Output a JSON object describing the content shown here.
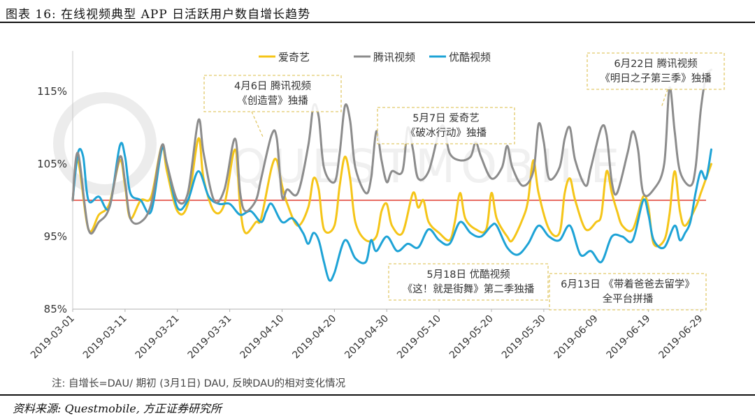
{
  "header": {
    "title": "图表 16:  在线视频典型 APP 日活跃用户数自增长趋势"
  },
  "footer": {
    "source": "资料来源: Questmobile, 方正证券研究所"
  },
  "chart_data": {
    "type": "line",
    "xlabel": "",
    "ylabel": "",
    "ylim": [
      85,
      120
    ],
    "yticks": [
      "85%",
      "95%",
      "105%",
      "115%"
    ],
    "ytick_values": [
      85,
      95,
      105,
      115
    ],
    "grid": false,
    "legend_position": "top-center",
    "baseline": {
      "value": 100,
      "color": "#e03c31"
    },
    "xtick_labels": [
      "2019-03-01",
      "2019-03-11",
      "2019-03-21",
      "2019-03-31",
      "2019-04-10",
      "2019-04-20",
      "2019-04-30",
      "2019-05-10",
      "2019-05-20",
      "2019-05-30",
      "2019-06-09",
      "2019-06-19",
      "2019-06-29"
    ],
    "x_start": "2019-03-01",
    "x_end": "2019-06-30",
    "watermark": "QUESTMOBILE",
    "series": [
      {
        "name": "爱奇艺",
        "color": "#f5c518",
        "points": [
          [
            "2019-03-01",
            100
          ],
          [
            "2019-03-02",
            105.5
          ],
          [
            "2019-03-04",
            96
          ],
          [
            "2019-03-06",
            98
          ],
          [
            "2019-03-08",
            99.5
          ],
          [
            "2019-03-10",
            105.5
          ],
          [
            "2019-03-11",
            102
          ],
          [
            "2019-03-12",
            97.5
          ],
          [
            "2019-03-14",
            100
          ],
          [
            "2019-03-16",
            100.5
          ],
          [
            "2019-03-18",
            107.5
          ],
          [
            "2019-03-19",
            104
          ],
          [
            "2019-03-21",
            98.5
          ],
          [
            "2019-03-23",
            99.5
          ],
          [
            "2019-03-25",
            108.5
          ],
          [
            "2019-03-26",
            103
          ],
          [
            "2019-03-28",
            98.5
          ],
          [
            "2019-03-30",
            99.5
          ],
          [
            "2019-04-01",
            107
          ],
          [
            "2019-04-02",
            99
          ],
          [
            "2019-04-03",
            95.5
          ],
          [
            "2019-04-05",
            97
          ],
          [
            "2019-04-06",
            97.5
          ],
          [
            "2019-04-08",
            104.5
          ],
          [
            "2019-04-09",
            105.5
          ],
          [
            "2019-04-10",
            102
          ],
          [
            "2019-04-11",
            99.5
          ],
          [
            "2019-04-13",
            96.5
          ],
          [
            "2019-04-15",
            99
          ],
          [
            "2019-04-16",
            103
          ],
          [
            "2019-04-17",
            101.5
          ],
          [
            "2019-04-18",
            96
          ],
          [
            "2019-04-20",
            96.5
          ],
          [
            "2019-04-21",
            102
          ],
          [
            "2019-04-22",
            106
          ],
          [
            "2019-04-23",
            103
          ],
          [
            "2019-04-24",
            97
          ],
          [
            "2019-04-26",
            94.5
          ],
          [
            "2019-04-28",
            95
          ],
          [
            "2019-04-29",
            98.5
          ],
          [
            "2019-04-30",
            99.5
          ],
          [
            "2019-05-01",
            96.5
          ],
          [
            "2019-05-03",
            95.5
          ],
          [
            "2019-05-05",
            101
          ],
          [
            "2019-05-06",
            99
          ],
          [
            "2019-05-07",
            100
          ],
          [
            "2019-05-08",
            97
          ],
          [
            "2019-05-10",
            95.5
          ],
          [
            "2019-05-12",
            94.5
          ],
          [
            "2019-05-13",
            97
          ],
          [
            "2019-05-14",
            101
          ],
          [
            "2019-05-15",
            97.5
          ],
          [
            "2019-05-17",
            96
          ],
          [
            "2019-05-19",
            96
          ],
          [
            "2019-05-20",
            101
          ],
          [
            "2019-05-21",
            97.5
          ],
          [
            "2019-05-23",
            95
          ],
          [
            "2019-05-24",
            94.5
          ],
          [
            "2019-05-26",
            97.5
          ],
          [
            "2019-05-27",
            100
          ],
          [
            "2019-05-28",
            105.5
          ],
          [
            "2019-05-29",
            101
          ],
          [
            "2019-05-31",
            96
          ],
          [
            "2019-06-02",
            95.5
          ],
          [
            "2019-06-03",
            101
          ],
          [
            "2019-06-04",
            103
          ],
          [
            "2019-06-05",
            100
          ],
          [
            "2019-06-07",
            96
          ],
          [
            "2019-06-09",
            97
          ],
          [
            "2019-06-10",
            98
          ],
          [
            "2019-06-11",
            104
          ],
          [
            "2019-06-12",
            101
          ],
          [
            "2019-06-13",
            98.5
          ],
          [
            "2019-06-14",
            96.5
          ],
          [
            "2019-06-16",
            96
          ],
          [
            "2019-06-18",
            100.5
          ],
          [
            "2019-06-19",
            99
          ],
          [
            "2019-06-20",
            94
          ],
          [
            "2019-06-22",
            94.5
          ],
          [
            "2019-06-23",
            98
          ],
          [
            "2019-06-24",
            104
          ],
          [
            "2019-06-25",
            98.5
          ],
          [
            "2019-06-26",
            96.5
          ],
          [
            "2019-06-28",
            99
          ],
          [
            "2019-06-29",
            101
          ],
          [
            "2019-06-30",
            103
          ],
          [
            "2019-07-01",
            105
          ]
        ]
      },
      {
        "name": "腾讯视频",
        "color": "#8c8c8c",
        "points": [
          [
            "2019-03-01",
            100
          ],
          [
            "2019-03-02",
            106.5
          ],
          [
            "2019-03-04",
            96
          ],
          [
            "2019-03-06",
            97
          ],
          [
            "2019-03-08",
            99
          ],
          [
            "2019-03-10",
            106
          ],
          [
            "2019-03-11",
            102.5
          ],
          [
            "2019-03-12",
            97.5
          ],
          [
            "2019-03-14",
            97
          ],
          [
            "2019-03-16",
            99.5
          ],
          [
            "2019-03-18",
            107.5
          ],
          [
            "2019-03-19",
            105
          ],
          [
            "2019-03-21",
            100
          ],
          [
            "2019-03-23",
            101
          ],
          [
            "2019-03-25",
            111
          ],
          [
            "2019-03-26",
            106.5
          ],
          [
            "2019-03-28",
            100
          ],
          [
            "2019-03-30",
            101.5
          ],
          [
            "2019-04-01",
            108.5
          ],
          [
            "2019-04-02",
            101
          ],
          [
            "2019-04-03",
            98.5
          ],
          [
            "2019-04-05",
            100
          ],
          [
            "2019-04-06",
            103
          ],
          [
            "2019-04-08",
            109
          ],
          [
            "2019-04-09",
            108.5
          ],
          [
            "2019-04-10",
            100.5
          ],
          [
            "2019-04-11",
            101.5
          ],
          [
            "2019-04-13",
            101
          ],
          [
            "2019-04-15",
            107.5
          ],
          [
            "2019-04-16",
            113
          ],
          [
            "2019-04-17",
            111.5
          ],
          [
            "2019-04-18",
            104.5
          ],
          [
            "2019-04-20",
            102.5
          ],
          [
            "2019-04-21",
            106.5
          ],
          [
            "2019-04-22",
            113
          ],
          [
            "2019-04-23",
            111
          ],
          [
            "2019-04-24",
            104.5
          ],
          [
            "2019-04-26",
            101
          ],
          [
            "2019-04-27",
            103
          ],
          [
            "2019-04-28",
            109.5
          ],
          [
            "2019-04-29",
            105.5
          ],
          [
            "2019-04-30",
            102.5
          ],
          [
            "2019-05-01",
            104
          ],
          [
            "2019-05-03",
            104
          ],
          [
            "2019-05-04",
            110
          ],
          [
            "2019-05-05",
            107
          ],
          [
            "2019-05-06",
            103
          ],
          [
            "2019-05-08",
            104
          ],
          [
            "2019-05-10",
            109.5
          ],
          [
            "2019-05-11",
            110
          ],
          [
            "2019-05-12",
            106.5
          ],
          [
            "2019-05-14",
            105.5
          ],
          [
            "2019-05-16",
            106
          ],
          [
            "2019-05-17",
            108
          ],
          [
            "2019-05-18",
            106
          ],
          [
            "2019-05-20",
            103
          ],
          [
            "2019-05-22",
            104.5
          ],
          [
            "2019-05-23",
            107.5
          ],
          [
            "2019-05-24",
            104.5
          ],
          [
            "2019-05-26",
            102
          ],
          [
            "2019-05-28",
            104
          ],
          [
            "2019-05-29",
            110.5
          ],
          [
            "2019-05-30",
            108
          ],
          [
            "2019-05-31",
            103
          ],
          [
            "2019-06-02",
            104.5
          ],
          [
            "2019-06-03",
            108.5
          ],
          [
            "2019-06-04",
            110
          ],
          [
            "2019-06-05",
            105.5
          ],
          [
            "2019-06-07",
            102
          ],
          [
            "2019-06-08",
            104.5
          ],
          [
            "2019-06-10",
            110
          ],
          [
            "2019-06-11",
            109
          ],
          [
            "2019-06-12",
            102.5
          ],
          [
            "2019-06-13",
            101
          ],
          [
            "2019-06-15",
            106.5
          ],
          [
            "2019-06-16",
            109.5
          ],
          [
            "2019-06-17",
            107
          ],
          [
            "2019-06-18",
            101
          ],
          [
            "2019-06-20",
            101.5
          ],
          [
            "2019-06-22",
            105
          ],
          [
            "2019-06-23",
            115.5
          ],
          [
            "2019-06-24",
            109.5
          ],
          [
            "2019-06-25",
            104
          ],
          [
            "2019-06-27",
            102
          ],
          [
            "2019-06-28",
            104.5
          ],
          [
            "2019-06-29",
            112.5
          ],
          [
            "2019-06-30",
            117
          ],
          [
            "2019-07-01",
            118
          ]
        ]
      },
      {
        "name": "优酷视频",
        "color": "#1ea3d6",
        "points": [
          [
            "2019-03-01",
            100
          ],
          [
            "2019-03-02",
            106.5
          ],
          [
            "2019-03-03",
            106
          ],
          [
            "2019-03-04",
            100
          ],
          [
            "2019-03-06",
            100.5
          ],
          [
            "2019-03-08",
            99
          ],
          [
            "2019-03-10",
            107.5
          ],
          [
            "2019-03-11",
            106
          ],
          [
            "2019-03-12",
            101
          ],
          [
            "2019-03-14",
            100
          ],
          [
            "2019-03-16",
            98.5
          ],
          [
            "2019-03-18",
            107
          ],
          [
            "2019-03-19",
            105
          ],
          [
            "2019-03-21",
            99
          ],
          [
            "2019-03-23",
            100
          ],
          [
            "2019-03-25",
            104
          ],
          [
            "2019-03-27",
            100.5
          ],
          [
            "2019-03-29",
            99.5
          ],
          [
            "2019-03-31",
            99.5
          ],
          [
            "2019-04-02",
            98
          ],
          [
            "2019-04-04",
            98.5
          ],
          [
            "2019-04-06",
            97
          ],
          [
            "2019-04-07",
            98.5
          ],
          [
            "2019-04-08",
            99.5
          ],
          [
            "2019-04-10",
            97
          ],
          [
            "2019-04-12",
            97.5
          ],
          [
            "2019-04-14",
            95.5
          ],
          [
            "2019-04-15",
            94
          ],
          [
            "2019-04-16",
            95.5
          ],
          [
            "2019-04-17",
            94.5
          ],
          [
            "2019-04-18",
            91.5
          ],
          [
            "2019-04-19",
            89
          ],
          [
            "2019-04-20",
            90
          ],
          [
            "2019-04-22",
            94.5
          ],
          [
            "2019-04-24",
            92
          ],
          [
            "2019-04-26",
            91.5
          ],
          [
            "2019-04-27",
            94.5
          ],
          [
            "2019-04-28",
            93
          ],
          [
            "2019-04-30",
            95
          ],
          [
            "2019-05-02",
            93
          ],
          [
            "2019-05-04",
            94
          ],
          [
            "2019-05-06",
            93.5
          ],
          [
            "2019-05-08",
            96
          ],
          [
            "2019-05-10",
            94.5
          ],
          [
            "2019-05-12",
            94
          ],
          [
            "2019-05-14",
            97
          ],
          [
            "2019-05-16",
            95.5
          ],
          [
            "2019-05-18",
            95
          ],
          [
            "2019-05-20",
            96.5
          ],
          [
            "2019-05-21",
            96.5
          ],
          [
            "2019-05-23",
            93.5
          ],
          [
            "2019-05-25",
            92.5
          ],
          [
            "2019-05-27",
            94
          ],
          [
            "2019-05-29",
            96.5
          ],
          [
            "2019-05-31",
            95
          ],
          [
            "2019-06-02",
            94.5
          ],
          [
            "2019-06-04",
            96.5
          ],
          [
            "2019-06-06",
            92.5
          ],
          [
            "2019-06-08",
            93
          ],
          [
            "2019-06-10",
            91.5
          ],
          [
            "2019-06-12",
            95
          ],
          [
            "2019-06-14",
            95
          ],
          [
            "2019-06-16",
            94.5
          ],
          [
            "2019-06-18",
            100
          ],
          [
            "2019-06-19",
            98
          ],
          [
            "2019-06-20",
            94.5
          ],
          [
            "2019-06-22",
            93.5
          ],
          [
            "2019-06-24",
            96.5
          ],
          [
            "2019-06-25",
            94.5
          ],
          [
            "2019-06-26",
            95.5
          ],
          [
            "2019-06-27",
            97
          ],
          [
            "2019-06-28",
            101
          ],
          [
            "2019-06-29",
            104
          ],
          [
            "2019-06-30",
            103
          ],
          [
            "2019-07-01",
            107
          ]
        ]
      }
    ],
    "annotations": [
      {
        "lines": [
          "4月6日 腾讯视频",
          "《创造营》独播"
        ]
      },
      {
        "lines": [
          "5月7日 爱奇艺",
          "《破冰行动》独播"
        ]
      },
      {
        "lines": [
          "6月22日 腾讯视频",
          "《明日之子第三季》独播"
        ]
      },
      {
        "lines": [
          "5月18日 优酷视频",
          "《这！就是街舞》第二季独播"
        ]
      },
      {
        "lines": [
          "6月13日 《带着爸爸去留学》",
          "全平台拼播"
        ]
      }
    ],
    "note": "注: 自增长=DAU/ 期初 (3月1日) DAU, 反映DAU的相对变化情况"
  }
}
